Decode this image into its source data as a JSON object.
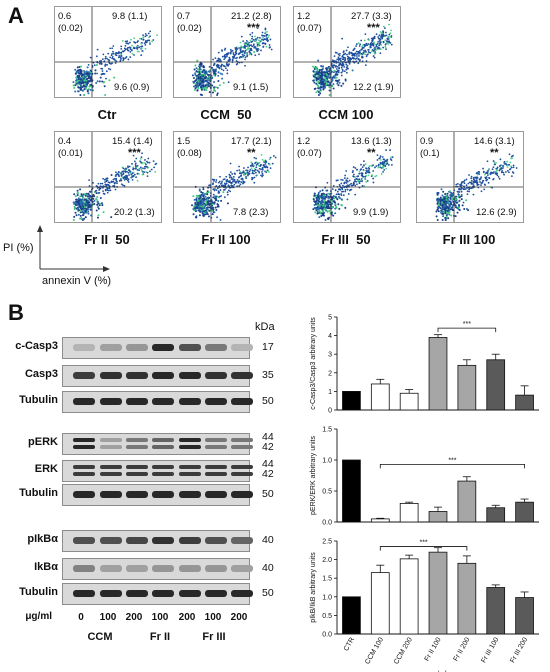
{
  "panel_a": {
    "letter": "A",
    "plots": [
      {
        "name": "Ctr",
        "tl": "0.6",
        "tl2": "(0.02)",
        "tr": "9.8 (1.1)",
        "br": "9.6 (0.9)",
        "stars": ""
      },
      {
        "name": "CCM  50",
        "tl": "0.7",
        "tl2": "(0.02)",
        "tr": "21.2 (2.8)",
        "br": "9.1 (1.5)",
        "stars": "***"
      },
      {
        "name": "CCM 100",
        "tl": "1.2",
        "tl2": "(0.07)",
        "tr": "27.7 (3.3)",
        "br": "12.2 (1.9)",
        "stars": "***"
      },
      {
        "name": "Fr II  50",
        "tl": "0.4",
        "tl2": "(0.01)",
        "tr": "15.4 (1.4)",
        "br": "20.2 (1.3)",
        "stars": "***"
      },
      {
        "name": "Fr II 100",
        "tl": "1.5",
        "tl2": "(0.08)",
        "tr": "17.7 (2.1)",
        "br": "7.8 (2.3)",
        "stars": "**"
      },
      {
        "name": "Fr III  50",
        "tl": "1.2",
        "tl2": "(0.07)",
        "tr": "13.6 (1.3)",
        "br": "9.9 (1.9)",
        "stars": "**"
      },
      {
        "name": "Fr III 100",
        "tl": "0.9",
        "tl2": "(0.1)",
        "tr": "14.6 (3.1)",
        "br": "12.6 (2.9)",
        "stars": "**"
      }
    ],
    "y_axis": "PI (%)",
    "x_axis": "annexin V (%)"
  },
  "panel_b": {
    "letter": "B",
    "kda_header": "kDa",
    "blots": [
      {
        "label": "c-Casp3",
        "kda": "17"
      },
      {
        "label": "Casp3",
        "kda": "35"
      },
      {
        "label": "Tubulin",
        "kda": "50"
      },
      {
        "label": "pERK",
        "kda": "44",
        "kda2": "42"
      },
      {
        "label": "ERK",
        "kda": "44",
        "kda2": "42"
      },
      {
        "label": "Tubulin",
        "kda": "50"
      },
      {
        "label": "pIkBα",
        "kda": "40"
      },
      {
        "label": "IkBα",
        "kda": "40"
      },
      {
        "label": "Tubulin",
        "kda": "50"
      }
    ],
    "unit": "μg/ml",
    "doses": [
      "0",
      "100",
      "200",
      "100",
      "200",
      "100",
      "200"
    ],
    "groups": [
      "CCM",
      "Fr II",
      "Fr III"
    ],
    "x_unit": "μg/ml"
  },
  "chart_data": [
    {
      "type": "bar",
      "ylabel": "c-Casp3/Casp3 arbitrary units",
      "ylim": [
        0,
        5
      ],
      "yticks": [
        "0",
        "1",
        "2",
        "3",
        "4",
        "5"
      ],
      "categories": [
        "CTR",
        "CCM 100",
        "CCM 200",
        "Fr II 100",
        "Fr II 200",
        "Fr III 100",
        "Fr III 200"
      ],
      "values": [
        1.0,
        1.4,
        0.9,
        3.9,
        2.4,
        2.7,
        0.8
      ],
      "errors": [
        0.0,
        0.25,
        0.2,
        0.15,
        0.3,
        0.3,
        0.5
      ],
      "colors": [
        "#000000",
        "#ffffff",
        "#ffffff",
        "#a6a6a6",
        "#a6a6a6",
        "#5a5a5a",
        "#5a5a5a"
      ],
      "sig": "***",
      "sig_from": 3,
      "sig_to": 5,
      "sig_at": 4.4
    },
    {
      "type": "bar",
      "ylabel": "pERK/ERK arbitrary units",
      "ylim": [
        0,
        1.5
      ],
      "yticks": [
        "0.0",
        "0.5",
        "1.0",
        "1.5"
      ],
      "categories": [
        "CTR",
        "CCM 100",
        "CCM 200",
        "Fr II 100",
        "Fr II 200",
        "Fr III 100",
        "Fr III 200"
      ],
      "values": [
        1.0,
        0.05,
        0.3,
        0.17,
        0.66,
        0.23,
        0.32
      ],
      "errors": [
        0.0,
        0.01,
        0.02,
        0.07,
        0.07,
        0.04,
        0.05
      ],
      "colors": [
        "#000000",
        "#ffffff",
        "#ffffff",
        "#a6a6a6",
        "#a6a6a6",
        "#5a5a5a",
        "#5a5a5a"
      ],
      "sig": "***",
      "sig_from": 1,
      "sig_to": 6,
      "sig_at": 0.93
    },
    {
      "type": "bar",
      "ylabel": "pIkB/IkB arbitrary units",
      "ylim": [
        0,
        2.5
      ],
      "yticks": [
        "0.0",
        "0.5",
        "1.0",
        "1.5",
        "2.0",
        "2.5"
      ],
      "categories": [
        "CTR",
        "CCM 100",
        "CCM 200",
        "Fr II 100",
        "Fr II 200",
        "Fr III 100",
        "Fr III 200"
      ],
      "values": [
        1.0,
        1.65,
        2.02,
        2.2,
        1.9,
        1.25,
        0.98
      ],
      "errors": [
        0.0,
        0.2,
        0.1,
        0.12,
        0.2,
        0.07,
        0.15
      ],
      "colors": [
        "#000000",
        "#ffffff",
        "#ffffff",
        "#a6a6a6",
        "#a6a6a6",
        "#5a5a5a",
        "#5a5a5a"
      ],
      "sig": "***",
      "sig_from": 1,
      "sig_to": 4,
      "sig_at": 2.35
    }
  ]
}
